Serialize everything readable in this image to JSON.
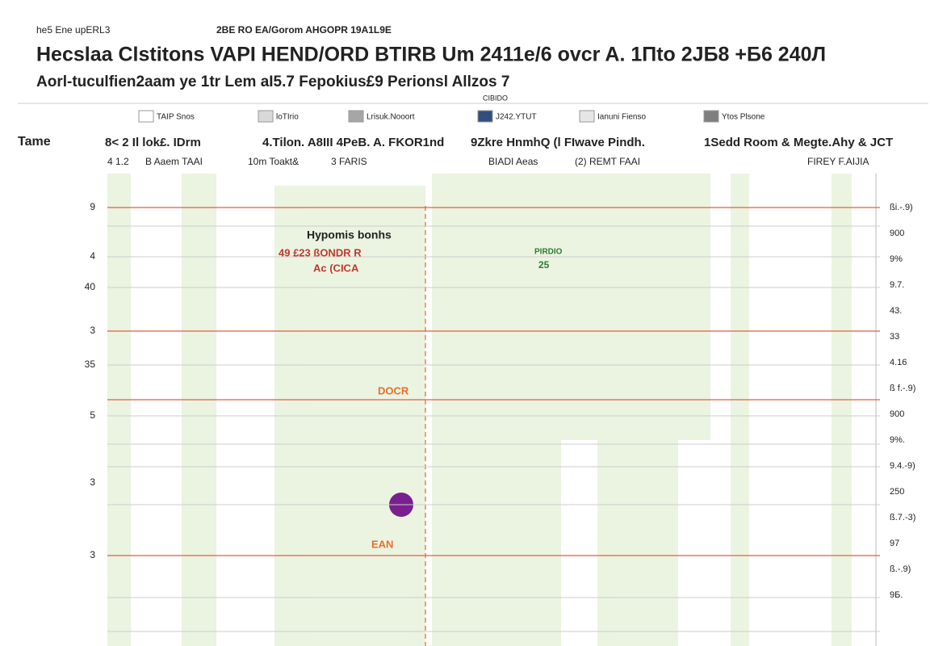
{
  "chart_data": {
    "type": "timeline",
    "header_left": "he5 Ene upERL3",
    "header_right": "2BE RO EA/Gorom AHGOPR 19A1L9E",
    "title": "Hecslaa Clstitons VAPI HEND/ORD BTIRB Um 2411e/6 ovcr A. 1Пto 2JБ8 +Б6 240Л",
    "subtitle": "Aorl-tuculfien2aam ye 1tr Lem aI5.7 Fepokius£9 Perionsl Allzos 7",
    "legend_note": "CIBIDO",
    "series": [
      {
        "name": "TAIP Snos",
        "color": "#ffffff"
      },
      {
        "name": "loTIrio",
        "color": "#d9d9d9"
      },
      {
        "name": "Lrisuk.Nooort",
        "color": "#a6a6a6"
      },
      {
        "name": "J242.YTUT",
        "color": "#2f4f7f"
      },
      {
        "name": "Ianuni Fienso",
        "color": "#e6e6e6"
      },
      {
        "name": "Ytos Plsone",
        "color": "#7f7f7f"
      }
    ],
    "row_header": "Tame",
    "columns": [
      "8< 2 Il lok£. IDrm",
      "4.Tilon. A8III 4PeB. A. FKOR1nd",
      "9Zkre HnmhQ (l FIwave Pindh.",
      "1Sedd Room & Megte.Ahy & JCT"
    ],
    "subcolumns": [
      "4 1.2",
      "B Aaem TAAI",
      "10m Toakt&",
      "3 FARIS",
      "BIADI Aeas",
      "(2) REMT FAAI",
      "FIREY F.AIJIA"
    ],
    "row_labels": [
      "9",
      "4",
      "40",
      "3",
      "35",
      "5",
      "3",
      "3"
    ],
    "right_labels": [
      "ßi.-.9)",
      "900",
      "9%",
      "9.7.",
      "43.",
      "33",
      "4.16",
      "ß f.-.9)",
      "900",
      "9%.",
      "9.4.-9)",
      "250",
      "ß.7.-3)",
      "97",
      "ß.-.9)",
      "9Б."
    ],
    "annotations": [
      "Нуроmis bonhs",
      "49 £23 ßONDR R",
      "Ac (CICA",
      "DOCR",
      "EAN",
      "25",
      "PIRDIO"
    ]
  }
}
